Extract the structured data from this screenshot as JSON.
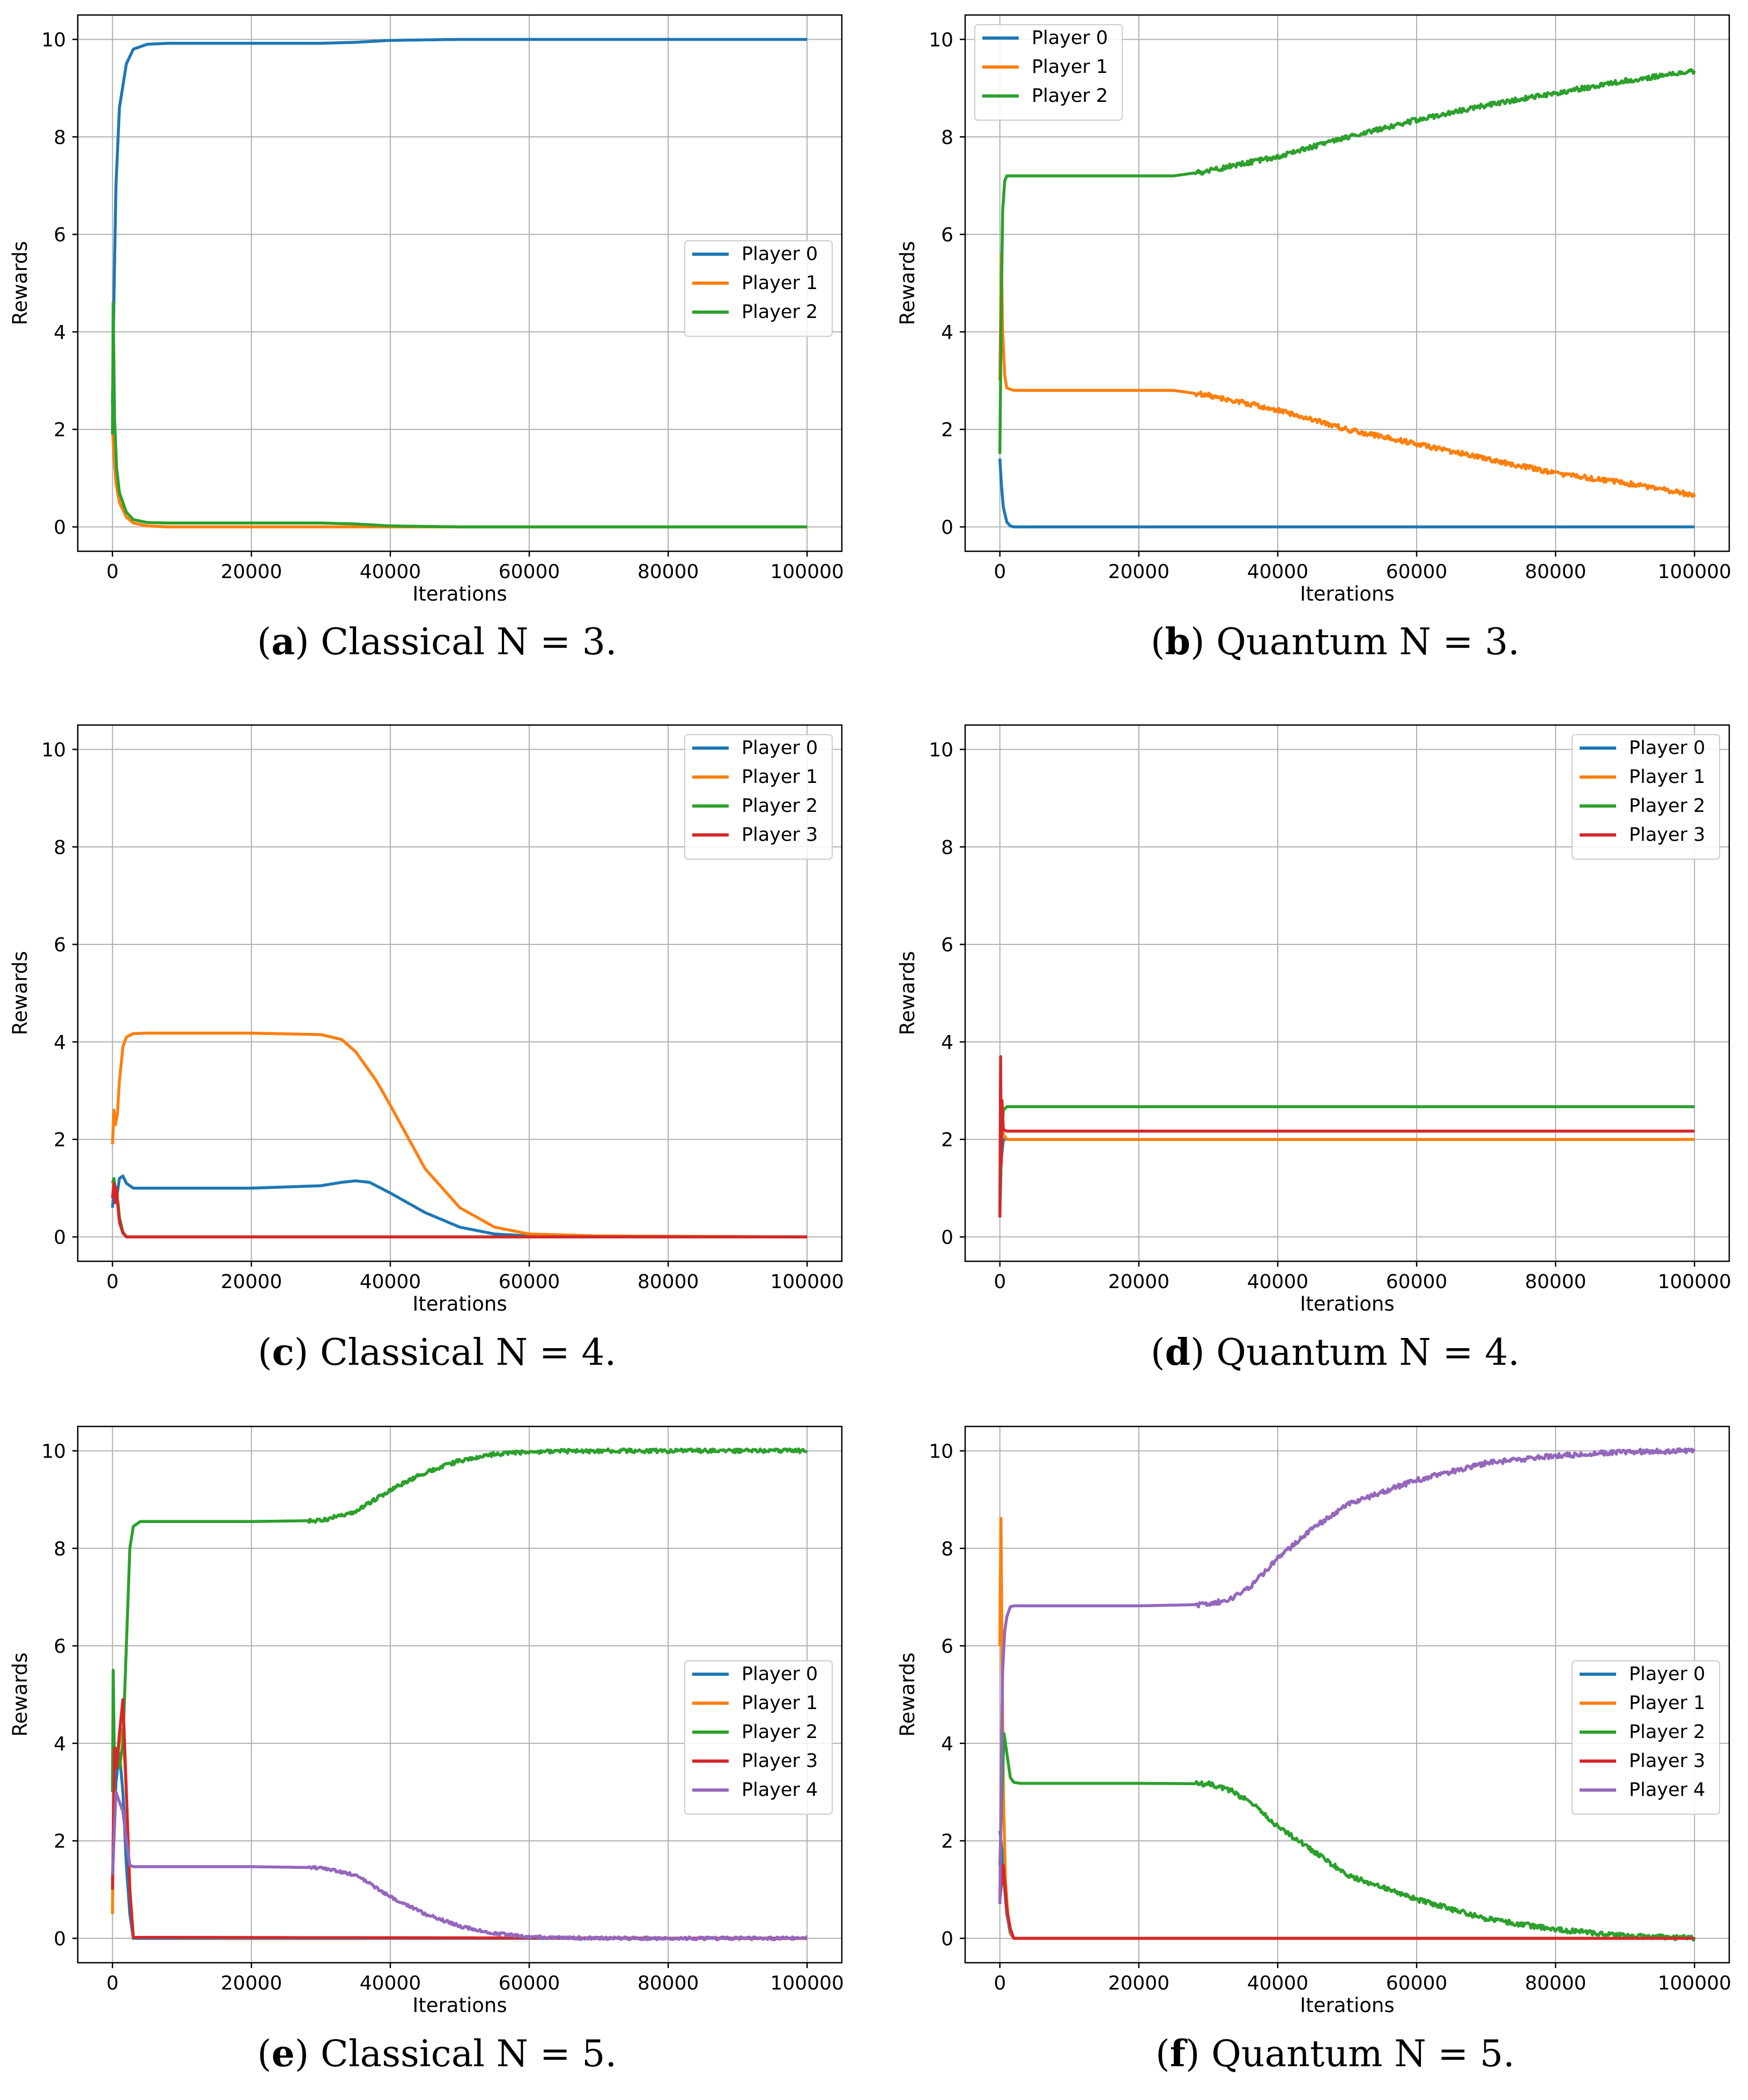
{
  "figure": {
    "colors": {
      "player_0": "#1f77b4",
      "player_1": "#ff7f0e",
      "player_2": "#2ca02c",
      "player_3": "#d62728",
      "player_4": "#9467bd"
    }
  },
  "chart_data": [
    {
      "id": "a",
      "type": "line",
      "caption": {
        "label": "a",
        "text": "Classical N = 3."
      },
      "xlabel": "Iterations",
      "ylabel": "Rewards",
      "xticks": [
        0,
        20000,
        40000,
        60000,
        80000,
        100000
      ],
      "yticks": [
        0,
        2,
        4,
        6,
        8,
        10
      ],
      "xlim": [
        -5000,
        105000
      ],
      "ylim": [
        -0.5,
        10.5
      ],
      "grid": true,
      "legend": {
        "position": "center-right"
      },
      "series": [
        {
          "name": "Player 0",
          "color": "#1f77b4",
          "noise": 0,
          "x": [
            0,
            200,
            500,
            1000,
            2000,
            3000,
            5000,
            8000,
            20000,
            30000,
            35000,
            40000,
            50000,
            100000
          ],
          "y": [
            2.5,
            4.6,
            7.0,
            8.6,
            9.5,
            9.8,
            9.9,
            9.92,
            9.92,
            9.92,
            9.94,
            9.98,
            10.0,
            10.0
          ]
        },
        {
          "name": "Player 1",
          "color": "#ff7f0e",
          "noise": 0,
          "x": [
            0,
            200,
            500,
            1000,
            2000,
            3000,
            5000,
            8000,
            20000,
            100000
          ],
          "y": [
            2.0,
            1.5,
            0.9,
            0.5,
            0.2,
            0.08,
            0.02,
            0.0,
            0.0,
            0.0
          ]
        },
        {
          "name": "Player 2",
          "color": "#2ca02c",
          "noise": 0,
          "x": [
            0,
            100,
            300,
            600,
            1000,
            2000,
            3000,
            5000,
            8000,
            20000,
            30000,
            35000,
            40000,
            50000,
            100000
          ],
          "y": [
            1.9,
            4.6,
            2.2,
            1.2,
            0.7,
            0.3,
            0.15,
            0.09,
            0.08,
            0.08,
            0.08,
            0.06,
            0.02,
            0.0,
            0.0
          ]
        }
      ]
    },
    {
      "id": "b",
      "type": "line",
      "caption": {
        "label": "b",
        "text": "Quantum N = 3."
      },
      "xlabel": "Iterations",
      "ylabel": "Rewards",
      "xticks": [
        0,
        20000,
        40000,
        60000,
        80000,
        100000
      ],
      "yticks": [
        0,
        2,
        4,
        6,
        8,
        10
      ],
      "xlim": [
        -5000,
        105000
      ],
      "ylim": [
        -0.5,
        10.5
      ],
      "grid": true,
      "legend": {
        "position": "top-left"
      },
      "series": [
        {
          "name": "Player 0",
          "color": "#1f77b4",
          "noise": 0,
          "x": [
            0,
            200,
            500,
            1000,
            1500,
            2000,
            100000
          ],
          "y": [
            1.4,
            0.9,
            0.4,
            0.1,
            0.02,
            0.0,
            0.0
          ]
        },
        {
          "name": "Player 1",
          "color": "#ff7f0e",
          "noise": 0.05,
          "x": [
            0,
            200,
            400,
            700,
            1000,
            2000,
            25000,
            30000,
            40000,
            50000,
            60000,
            70000,
            80000,
            90000,
            100000
          ],
          "y": [
            3.0,
            5.6,
            4.0,
            3.1,
            2.85,
            2.8,
            2.8,
            2.7,
            2.4,
            2.0,
            1.7,
            1.4,
            1.1,
            0.9,
            0.65
          ]
        },
        {
          "name": "Player 2",
          "color": "#2ca02c",
          "noise": 0.05,
          "x": [
            0,
            200,
            400,
            700,
            1000,
            2000,
            25000,
            30000,
            40000,
            50000,
            60000,
            70000,
            80000,
            90000,
            100000
          ],
          "y": [
            1.5,
            4.5,
            6.5,
            7.1,
            7.2,
            7.2,
            7.2,
            7.3,
            7.6,
            8.0,
            8.35,
            8.65,
            8.9,
            9.15,
            9.35
          ]
        }
      ]
    },
    {
      "id": "c",
      "type": "line",
      "caption": {
        "label": "c",
        "text": "Classical N = 4."
      },
      "xlabel": "Iterations",
      "ylabel": "Rewards",
      "xticks": [
        0,
        20000,
        40000,
        60000,
        80000,
        100000
      ],
      "yticks": [
        0,
        2,
        4,
        6,
        8,
        10
      ],
      "xlim": [
        -5000,
        105000
      ],
      "ylim": [
        -0.5,
        10.5
      ],
      "grid": true,
      "legend": {
        "position": "top-right"
      },
      "series": [
        {
          "name": "Player 0",
          "color": "#1f77b4",
          "noise": 0,
          "x": [
            0,
            300,
            600,
            1000,
            1500,
            2000,
            3000,
            5000,
            20000,
            30000,
            33000,
            35000,
            37000,
            40000,
            45000,
            50000,
            55000,
            60000,
            100000
          ],
          "y": [
            0.6,
            1.1,
            0.8,
            1.2,
            1.25,
            1.1,
            1.0,
            1.0,
            1.0,
            1.05,
            1.12,
            1.15,
            1.12,
            0.9,
            0.5,
            0.2,
            0.06,
            0.02,
            0.0
          ]
        },
        {
          "name": "Player 1",
          "color": "#ff7f0e",
          "noise": 0,
          "x": [
            0,
            200,
            400,
            700,
            1000,
            1500,
            2000,
            3000,
            5000,
            20000,
            30000,
            33000,
            35000,
            38000,
            40000,
            45000,
            50000,
            55000,
            60000,
            70000,
            100000
          ],
          "y": [
            1.9,
            2.6,
            2.3,
            2.5,
            3.2,
            3.9,
            4.1,
            4.17,
            4.18,
            4.18,
            4.15,
            4.05,
            3.8,
            3.2,
            2.7,
            1.4,
            0.6,
            0.2,
            0.06,
            0.02,
            0.0
          ]
        },
        {
          "name": "Player 2",
          "color": "#2ca02c",
          "noise": 0,
          "x": [
            0,
            200,
            500,
            800,
            1000,
            1500,
            2000,
            100000
          ],
          "y": [
            1.1,
            1.2,
            0.9,
            0.7,
            0.4,
            0.1,
            0.0,
            0.0
          ]
        },
        {
          "name": "Player 3",
          "color": "#d62728",
          "noise": 0,
          "x": [
            0,
            200,
            400,
            600,
            800,
            1000,
            1500,
            2000,
            100000
          ],
          "y": [
            0.8,
            1.1,
            0.7,
            1.0,
            0.6,
            0.3,
            0.08,
            0.0,
            0.0
          ]
        }
      ]
    },
    {
      "id": "d",
      "type": "line",
      "caption": {
        "label": "d",
        "text": "Quantum N = 4."
      },
      "xlabel": "Iterations",
      "ylabel": "Rewards",
      "xticks": [
        0,
        20000,
        40000,
        60000,
        80000,
        100000
      ],
      "yticks": [
        0,
        2,
        4,
        6,
        8,
        10
      ],
      "xlim": [
        -5000,
        105000
      ],
      "ylim": [
        -0.5,
        10.5
      ],
      "grid": true,
      "legend": {
        "position": "top-right"
      },
      "series": [
        {
          "name": "Player 0",
          "color": "#1f77b4",
          "noise": 0,
          "x": [
            0,
            200,
            500,
            1000,
            100000
          ],
          "y": [
            0.5,
            1.6,
            2.0,
            2.0,
            2.0
          ]
        },
        {
          "name": "Player 1",
          "color": "#ff7f0e",
          "noise": 0,
          "x": [
            0,
            200,
            500,
            1000,
            100000
          ],
          "y": [
            0.5,
            2.8,
            2.1,
            2.0,
            2.0
          ]
        },
        {
          "name": "Player 2",
          "color": "#2ca02c",
          "noise": 0,
          "x": [
            0,
            200,
            500,
            1000,
            100000
          ],
          "y": [
            0.6,
            2.0,
            2.6,
            2.67,
            2.67
          ]
        },
        {
          "name": "Player 3",
          "color": "#d62728",
          "noise": 0,
          "x": [
            0,
            100,
            200,
            300,
            500,
            1000,
            100000
          ],
          "y": [
            0.4,
            3.7,
            1.5,
            2.8,
            2.2,
            2.17,
            2.17
          ]
        }
      ]
    },
    {
      "id": "e",
      "type": "line",
      "caption": {
        "label": "e",
        "text": "Classical N = 5."
      },
      "xlabel": "Iterations",
      "ylabel": "Rewards",
      "xticks": [
        0,
        20000,
        40000,
        60000,
        80000,
        100000
      ],
      "yticks": [
        0,
        2,
        4,
        6,
        8,
        10
      ],
      "xlim": [
        -5000,
        105000
      ],
      "ylim": [
        -0.5,
        10.5
      ],
      "grid": true,
      "legend": {
        "position": "center-right"
      },
      "series": [
        {
          "name": "Player 0",
          "color": "#1f77b4",
          "noise": 0,
          "x": [
            0,
            500,
            1000,
            1500,
            2000,
            2500,
            3000,
            100000
          ],
          "y": [
            1.2,
            3.2,
            3.8,
            3.0,
            1.5,
            0.5,
            0.0,
            0.0
          ]
        },
        {
          "name": "Player 1",
          "color": "#ff7f0e",
          "noise": 0,
          "x": [
            0,
            200,
            500,
            1000,
            1500,
            2000,
            2500,
            3000,
            100000
          ],
          "y": [
            0.5,
            3.8,
            3.5,
            4.0,
            4.3,
            3.0,
            1.0,
            0.02,
            0.0
          ]
        },
        {
          "name": "Player 2",
          "color": "#2ca02c",
          "noise": 0.04,
          "x": [
            0,
            100,
            300,
            600,
            1000,
            1500,
            2000,
            2500,
            3000,
            4000,
            20000,
            30000,
            35000,
            40000,
            45000,
            50000,
            55000,
            60000,
            70000,
            100000
          ],
          "y": [
            3.0,
            5.5,
            3.4,
            3.9,
            3.5,
            4.0,
            6.0,
            8.0,
            8.45,
            8.55,
            8.55,
            8.57,
            8.75,
            9.2,
            9.55,
            9.8,
            9.93,
            9.98,
            10.0,
            10.0
          ]
        },
        {
          "name": "Player 3",
          "color": "#d62728",
          "noise": 0,
          "x": [
            0,
            300,
            600,
            1000,
            1500,
            2000,
            2500,
            3000,
            100000
          ],
          "y": [
            1.0,
            3.9,
            3.5,
            4.2,
            4.9,
            3.0,
            1.0,
            0.02,
            0.0
          ]
        },
        {
          "name": "Player 4",
          "color": "#9467bd",
          "noise": 0.03,
          "x": [
            0,
            500,
            1000,
            1500,
            2000,
            2500,
            3000,
            20000,
            30000,
            35000,
            40000,
            45000,
            50000,
            55000,
            60000,
            70000,
            100000
          ],
          "y": [
            1.3,
            3.0,
            2.8,
            2.6,
            2.0,
            1.5,
            1.47,
            1.47,
            1.45,
            1.3,
            0.85,
            0.5,
            0.25,
            0.1,
            0.03,
            0.0,
            0.0
          ]
        }
      ]
    },
    {
      "id": "f",
      "type": "line",
      "caption": {
        "label": "f",
        "text": "Quantum N = 5."
      },
      "xlabel": "Iterations",
      "ylabel": "Rewards",
      "xticks": [
        0,
        20000,
        40000,
        60000,
        80000,
        100000
      ],
      "yticks": [
        0,
        2,
        4,
        6,
        8,
        10
      ],
      "xlim": [
        -5000,
        105000
      ],
      "ylim": [
        -0.5,
        10.5
      ],
      "grid": true,
      "legend": {
        "position": "center-right"
      },
      "series": [
        {
          "name": "Player 0",
          "color": "#1f77b4",
          "noise": 0,
          "x": [
            0,
            300,
            700,
            1000,
            1500,
            2000,
            100000
          ],
          "y": [
            2.2,
            1.8,
            1.0,
            0.5,
            0.1,
            0.0,
            0.0
          ]
        },
        {
          "name": "Player 1",
          "color": "#ff7f0e",
          "noise": 0,
          "x": [
            0,
            150,
            300,
            500,
            800,
            1200,
            1600,
            2000,
            100000
          ],
          "y": [
            6.0,
            8.8,
            6.0,
            3.0,
            1.2,
            0.4,
            0.1,
            0.0,
            0.0
          ]
        },
        {
          "name": "Player 2",
          "color": "#2ca02c",
          "noise": 0.05,
          "x": [
            0,
            300,
            600,
            1000,
            1500,
            2000,
            3000,
            20000,
            30000,
            33000,
            36000,
            40000,
            45000,
            50000,
            60000,
            70000,
            80000,
            90000,
            100000
          ],
          "y": [
            1.5,
            3.0,
            4.2,
            3.8,
            3.3,
            3.2,
            3.18,
            3.18,
            3.17,
            3.05,
            2.8,
            2.3,
            1.8,
            1.3,
            0.8,
            0.4,
            0.18,
            0.05,
            0.01
          ]
        },
        {
          "name": "Player 3",
          "color": "#d62728",
          "noise": 0,
          "x": [
            0,
            500,
            1000,
            1500,
            2000,
            100000
          ],
          "y": [
            0.8,
            1.5,
            0.6,
            0.2,
            0.0,
            0.0
          ]
        },
        {
          "name": "Player 4",
          "color": "#9467bd",
          "noise": 0.05,
          "x": [
            0,
            200,
            400,
            700,
            1000,
            1500,
            2000,
            3000,
            20000,
            30000,
            33000,
            36000,
            40000,
            45000,
            50000,
            60000,
            70000,
            80000,
            90000,
            100000
          ],
          "y": [
            0.7,
            3.5,
            5.5,
            6.3,
            6.6,
            6.8,
            6.82,
            6.82,
            6.82,
            6.85,
            6.95,
            7.2,
            7.8,
            8.4,
            8.9,
            9.4,
            9.75,
            9.9,
            9.98,
            10.0
          ]
        }
      ]
    }
  ]
}
